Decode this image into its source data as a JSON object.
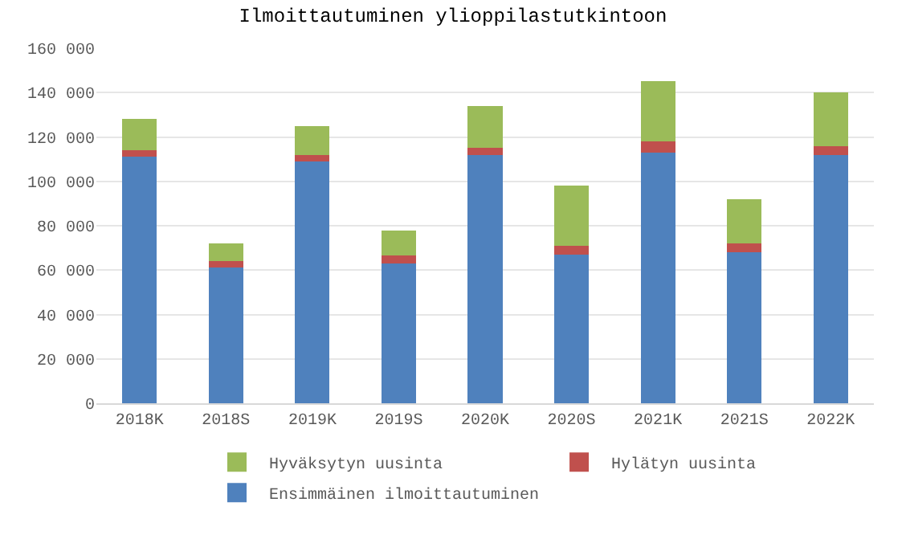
{
  "chart_data": {
    "type": "bar",
    "title": "Ilmoittautuminen ylioppilastutkintoon",
    "stacked": true,
    "categories": [
      "2018K",
      "2018S",
      "2019K",
      "2019S",
      "2020K",
      "2020S",
      "2021K",
      "2021S",
      "2022K"
    ],
    "series": [
      {
        "name": "Ensimmäinen ilmoittautuminen",
        "color": "#4f81bd",
        "values": [
          111000,
          61000,
          109000,
          63000,
          112000,
          67000,
          113000,
          68000,
          112000
        ]
      },
      {
        "name": "Hylätyn uusinta",
        "color": "#c0504d",
        "values": [
          3000,
          3000,
          3000,
          3500,
          3000,
          4000,
          5000,
          4000,
          4000
        ]
      },
      {
        "name": "Hyväksytyn uusinta",
        "color": "#9bbb59",
        "values": [
          14000,
          8000,
          13000,
          11500,
          19000,
          27000,
          27000,
          20000,
          24000
        ]
      }
    ],
    "ylim": [
      0,
      160000
    ],
    "yticks": [
      {
        "value": 0,
        "label": "0"
      },
      {
        "value": 20000,
        "label": "20 000"
      },
      {
        "value": 40000,
        "label": "40 000"
      },
      {
        "value": 60000,
        "label": "60 000"
      },
      {
        "value": 80000,
        "label": "80 000"
      },
      {
        "value": 100000,
        "label": "100 000"
      },
      {
        "value": 120000,
        "label": "120 000"
      },
      {
        "value": 140000,
        "label": "140 000"
      },
      {
        "value": 160000,
        "label": "160 000"
      }
    ],
    "grid": "y",
    "legend": "bottom"
  }
}
